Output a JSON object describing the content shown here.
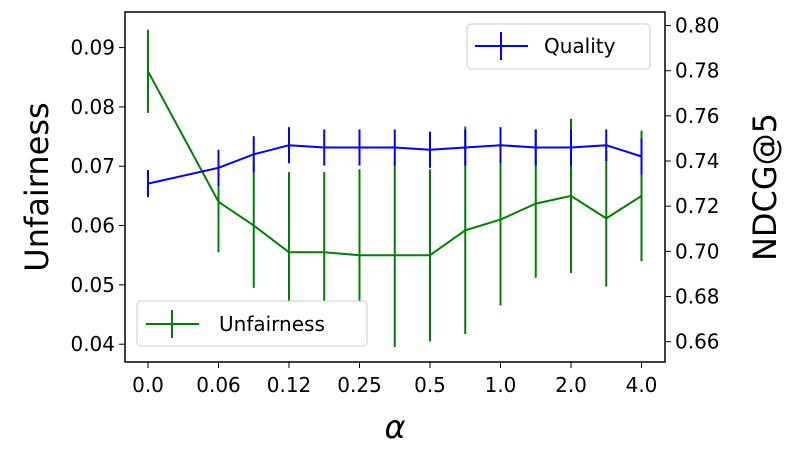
{
  "chart_data": {
    "type": "line",
    "x_tick_labels": [
      "0.0",
      "0.06",
      "0.12",
      "0.25",
      "0.5",
      "1.0",
      "2.0",
      "4.0"
    ],
    "xlabel": "α",
    "ylabel_left": "Unfairness",
    "ylabel_right": "NDCG@5",
    "ylim_left": [
      0.037,
      0.096
    ],
    "yticks_left": [
      "0.04",
      "0.05",
      "0.06",
      "0.07",
      "0.08",
      "0.09"
    ],
    "ylim_right": [
      0.651,
      0.806
    ],
    "yticks_right": [
      "0.66",
      "0.68",
      "0.70",
      "0.72",
      "0.74",
      "0.76",
      "0.78",
      "0.80"
    ],
    "grid": false,
    "x": [
      0,
      1,
      1.5,
      2,
      2.5,
      3,
      3.5,
      4,
      4.5,
      5,
      5.5,
      6,
      6.5,
      7
    ],
    "series": [
      {
        "name": "Quality",
        "axis": "right",
        "color": "#0000ff",
        "values": [
          0.73,
          0.737,
          0.743,
          0.747,
          0.746,
          0.746,
          0.746,
          0.745,
          0.746,
          0.747,
          0.746,
          0.746,
          0.747,
          0.742
        ],
        "errors": [
          0.006,
          0.008,
          0.008,
          0.008,
          0.008,
          0.008,
          0.008,
          0.008,
          0.008,
          0.008,
          0.008,
          0.008,
          0.007,
          0.008
        ]
      },
      {
        "name": "Unfairness",
        "axis": "left",
        "color": "#008000",
        "values": [
          0.086,
          0.064,
          0.06,
          0.0555,
          0.0555,
          0.055,
          0.055,
          0.055,
          0.0592,
          0.061,
          0.0637,
          0.065,
          0.0612,
          0.065
        ],
        "errors": [
          0.007,
          0.0085,
          0.0105,
          0.0135,
          0.0135,
          0.0145,
          0.0155,
          0.0145,
          0.0175,
          0.0145,
          0.0125,
          0.013,
          0.0115,
          0.011
        ]
      }
    ],
    "legends": [
      {
        "series": "Quality",
        "placement": "top-right"
      },
      {
        "series": "Unfairness",
        "placement": "bottom-left"
      }
    ]
  }
}
